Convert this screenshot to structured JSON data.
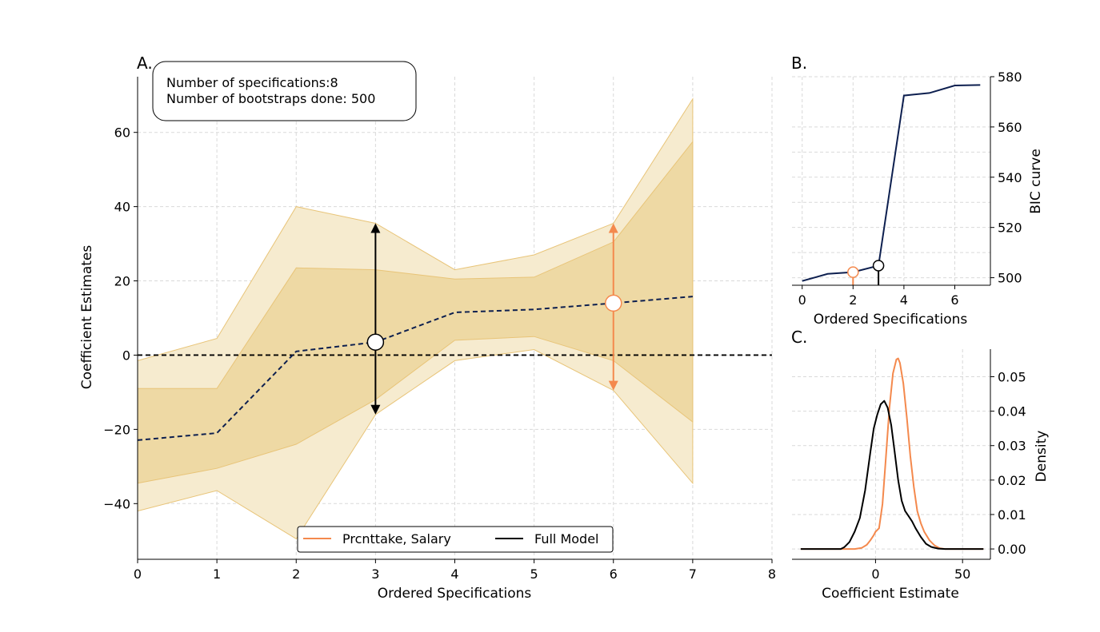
{
  "colors": {
    "outer_band": "#f6ebcf",
    "inner_band": "#eed9a4",
    "band_edge": "#e8c478",
    "median": "#0d1f4f",
    "highlight": "#f4894d",
    "full_model": "#000000",
    "zero_line": "#000000"
  },
  "chart_data": [
    {
      "panel": "A.",
      "type": "area",
      "ylabel": "Coefficient Estimates",
      "xlabel": "Ordered Specifications",
      "xlim": [
        0,
        8
      ],
      "ylim": [
        -55,
        75
      ],
      "xticks": [
        0,
        1,
        2,
        3,
        4,
        5,
        6,
        7,
        8
      ],
      "yticks": [
        -40,
        -20,
        0,
        20,
        40,
        60
      ],
      "grid": true,
      "annotation_lines": [
        "Number of specifications:8",
        "Number of bootstraps done: 500"
      ],
      "x": [
        0,
        1,
        2,
        3,
        4,
        5,
        6,
        7
      ],
      "median": [
        -22.9,
        -21.0,
        1.0,
        3.5,
        11.5,
        12.3,
        14.0,
        15.8
      ],
      "outer_upper": [
        -1.5,
        4.5,
        40.0,
        35.5,
        23.0,
        27.0,
        35.5,
        69.0
      ],
      "outer_lower": [
        -42.0,
        -36.5,
        -49.5,
        -16.0,
        -1.5,
        1.5,
        -9.5,
        -34.5
      ],
      "inner_upper": [
        -9.0,
        -9.0,
        23.5,
        23.0,
        20.5,
        21.0,
        30.5,
        57.5
      ],
      "inner_lower": [
        -34.5,
        -30.5,
        -24.0,
        -12.0,
        4.0,
        5.0,
        -1.5,
        -18.0
      ],
      "zero_line": 0,
      "highlights": [
        {
          "series": "Full Model",
          "x": 3,
          "y": 3.5,
          "arrow_top": 35.5,
          "arrow_bottom": -16.0
        },
        {
          "series": "Prcnttake, Salary",
          "x": 6,
          "y": 14.0,
          "arrow_top": 35.5,
          "arrow_bottom": -9.5
        }
      ],
      "legend": {
        "placement": "bottom-center",
        "entries": [
          {
            "label": "Prcnttake, Salary",
            "color": "#f4894d"
          },
          {
            "label": "Full Model",
            "color": "#000000"
          }
        ]
      }
    },
    {
      "panel": "B.",
      "type": "line",
      "xlabel": "Ordered Specifications",
      "ylabel": "BIC curve",
      "xlim": [
        -0.4,
        7.4
      ],
      "ylim": [
        497,
        580
      ],
      "xticks": [
        0,
        2,
        4,
        6
      ],
      "yticks": [
        500,
        520,
        540,
        560,
        580
      ],
      "grid": true,
      "x": [
        0,
        1,
        2,
        3,
        4,
        5,
        6,
        7
      ],
      "values": [
        498.7,
        501.5,
        502.2,
        504.8,
        572.5,
        573.5,
        576.5,
        576.7
      ],
      "markers": [
        {
          "series": "Prcnttake, Salary",
          "x": 2,
          "y": 502.2
        },
        {
          "series": "Full Model",
          "x": 3,
          "y": 504.8
        }
      ]
    },
    {
      "panel": "C.",
      "type": "line",
      "xlabel": "Coefficient Estimate",
      "ylabel": "Density",
      "xlim": [
        -48,
        66
      ],
      "ylim": [
        -0.003,
        0.058
      ],
      "xticks": [
        0,
        50
      ],
      "yticks": [
        0.0,
        0.01,
        0.02,
        0.03,
        0.04,
        0.05
      ],
      "ytick_labels": [
        "0.00",
        "0.01",
        "0.02",
        "0.03",
        "0.04",
        "0.05"
      ],
      "grid": true,
      "series": [
        {
          "name": "Prcnttake, Salary",
          "x": [
            -43,
            -12,
            -8,
            -5,
            -3,
            -1,
            0,
            2,
            4,
            6,
            8,
            10,
            12,
            13,
            14,
            16,
            18,
            20,
            22,
            24,
            26,
            28,
            31,
            34,
            37,
            40,
            46,
            62
          ],
          "values": [
            0,
            0,
            0.0003,
            0.0012,
            0.0025,
            0.004,
            0.005,
            0.006,
            0.013,
            0.027,
            0.041,
            0.051,
            0.055,
            0.0553,
            0.054,
            0.048,
            0.038,
            0.027,
            0.018,
            0.011,
            0.0075,
            0.005,
            0.0025,
            0.001,
            0.0002,
            0,
            0,
            0
          ]
        },
        {
          "name": "Full Model",
          "x": [
            -43,
            -20,
            -18,
            -15,
            -12,
            -9,
            -6,
            -3,
            -1,
            1,
            3,
            5,
            7,
            9,
            11,
            13,
            15,
            17,
            19,
            21,
            23,
            26,
            29,
            32,
            36,
            40,
            62
          ],
          "values": [
            0,
            0,
            0.0005,
            0.002,
            0.005,
            0.009,
            0.017,
            0.028,
            0.035,
            0.039,
            0.042,
            0.043,
            0.041,
            0.036,
            0.028,
            0.02,
            0.014,
            0.011,
            0.0095,
            0.008,
            0.006,
            0.0035,
            0.0015,
            0.0006,
            0.0001,
            0,
            0
          ]
        }
      ]
    }
  ]
}
